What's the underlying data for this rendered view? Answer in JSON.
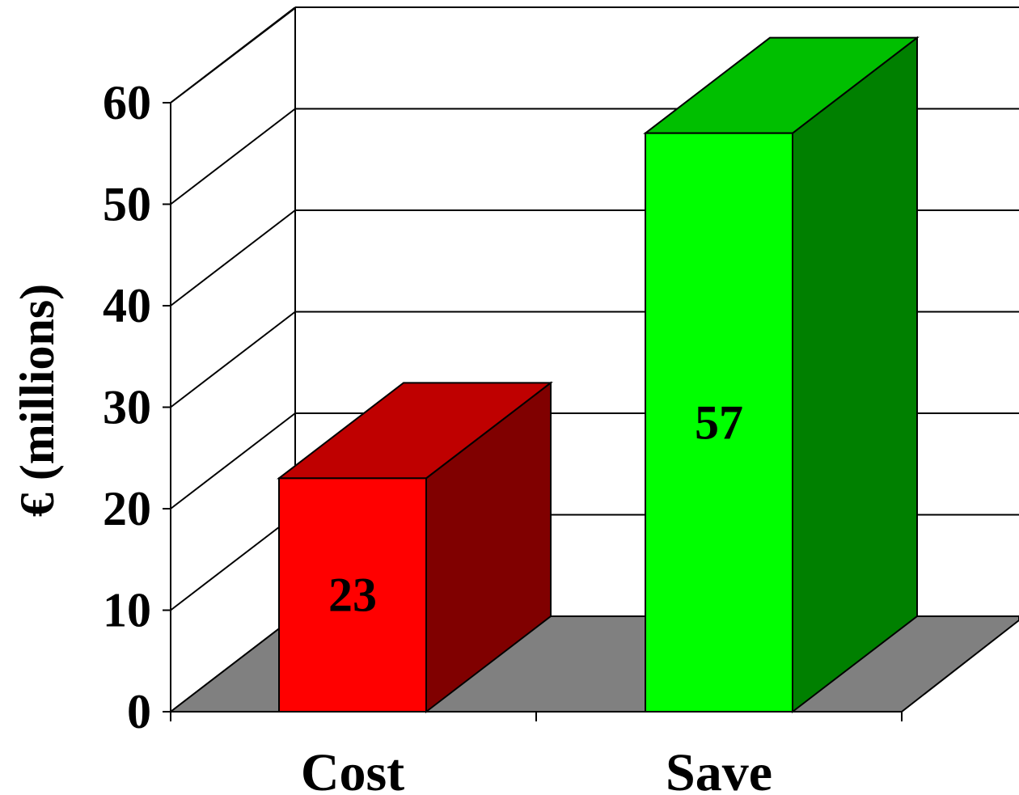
{
  "chart_data": {
    "type": "bar",
    "style": "3d-column",
    "categories": [
      "Cost",
      "Save"
    ],
    "values": [
      23,
      57
    ],
    "data_labels": [
      "23",
      "57"
    ],
    "title": "",
    "xlabel": "",
    "ylabel": "€ (millions)",
    "ylim": [
      0,
      60
    ],
    "yticks": [
      0,
      10,
      20,
      30,
      40,
      50,
      60
    ],
    "ytick_labels": [
      "0",
      "10",
      "20",
      "30",
      "40",
      "50",
      "60"
    ],
    "grid": true,
    "legend": "none",
    "colors": {
      "Cost": {
        "front": "#ff0000",
        "top": "#bf0000",
        "side": "#800000"
      },
      "Save": {
        "front": "#00ff00",
        "top": "#00bf00",
        "side": "#008000"
      },
      "floor": "#808080",
      "walls": "#ffffff",
      "lines": "#000000"
    }
  }
}
